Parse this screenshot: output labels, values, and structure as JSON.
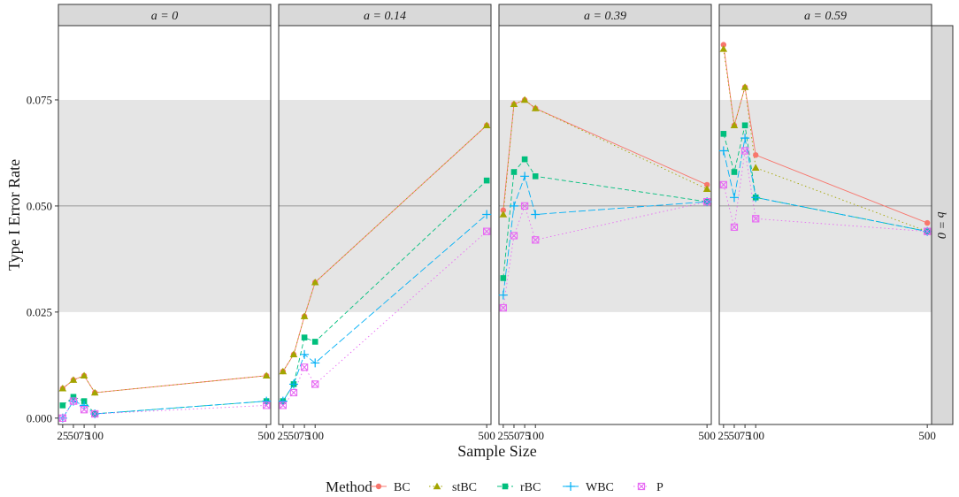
{
  "chart_data": {
    "type": "line",
    "xlabel": "Sample Size",
    "ylabel": "Type I Error Rate",
    "x": [
      25,
      50,
      75,
      100,
      500
    ],
    "x_ticks": [
      "25",
      "50",
      "75",
      "100",
      "500"
    ],
    "y_ticks": [
      "0.000",
      "0.025",
      "0.050",
      "0.075"
    ],
    "ylim": [
      -0.0015,
      0.0925
    ],
    "xlim": [
      15,
      510
    ],
    "reference_line": 0.05,
    "reference_band": [
      0.025,
      0.075
    ],
    "facet_row_label": "b = 0",
    "legend_title": "Method",
    "legend_position": "bottom",
    "methods": [
      {
        "name": "BC",
        "color": "#F8766D",
        "marker": "circle",
        "dash": "solid"
      },
      {
        "name": "stBC",
        "color": "#A3A500",
        "marker": "triangle",
        "dash": "dotted"
      },
      {
        "name": "rBC",
        "color": "#00BF7D",
        "marker": "square",
        "dash": "dashed"
      },
      {
        "name": "WBC",
        "color": "#00B0F6",
        "marker": "plus",
        "dash": "longdash"
      },
      {
        "name": "P",
        "color": "#E76BF3",
        "marker": "boxx",
        "dash": "dotted"
      }
    ],
    "panels": [
      {
        "label": "a = 0",
        "a_value": "0",
        "series": {
          "BC": [
            0.007,
            0.009,
            0.01,
            0.006,
            0.01
          ],
          "stBC": [
            0.007,
            0.009,
            0.01,
            0.006,
            0.01
          ],
          "rBC": [
            0.003,
            0.005,
            0.004,
            0.001,
            0.004
          ],
          "WBC": [
            0.0,
            0.004,
            0.003,
            0.001,
            0.004
          ],
          "P": [
            0.0,
            0.004,
            0.002,
            0.001,
            0.003
          ]
        }
      },
      {
        "label": "a = 0.14",
        "a_value": "0.14",
        "series": {
          "BC": [
            0.011,
            0.015,
            0.024,
            0.032,
            0.069
          ],
          "stBC": [
            0.011,
            0.015,
            0.024,
            0.032,
            0.069
          ],
          "rBC": [
            0.004,
            0.008,
            0.019,
            0.018,
            0.056
          ],
          "WBC": [
            0.004,
            0.008,
            0.015,
            0.013,
            0.048
          ],
          "P": [
            0.003,
            0.006,
            0.012,
            0.008,
            0.044
          ]
        }
      },
      {
        "label": "a = 0.39",
        "a_value": "0.39",
        "series": {
          "BC": [
            0.049,
            0.074,
            0.075,
            0.073,
            0.055
          ],
          "stBC": [
            0.048,
            0.074,
            0.075,
            0.073,
            0.054
          ],
          "rBC": [
            0.033,
            0.058,
            0.061,
            0.057,
            0.051
          ],
          "WBC": [
            0.029,
            0.05,
            0.057,
            0.048,
            0.051
          ],
          "P": [
            0.026,
            0.043,
            0.05,
            0.042,
            0.051
          ]
        }
      },
      {
        "label": "a = 0.59",
        "a_value": "0.59",
        "series": {
          "BC": [
            0.088,
            0.069,
            0.078,
            0.062,
            0.046
          ],
          "stBC": [
            0.087,
            0.069,
            0.078,
            0.059,
            0.044
          ],
          "rBC": [
            0.067,
            0.058,
            0.069,
            0.052,
            0.044
          ],
          "WBC": [
            0.063,
            0.052,
            0.066,
            0.052,
            0.044
          ],
          "P": [
            0.055,
            0.045,
            0.063,
            0.047,
            0.044
          ]
        }
      }
    ]
  }
}
